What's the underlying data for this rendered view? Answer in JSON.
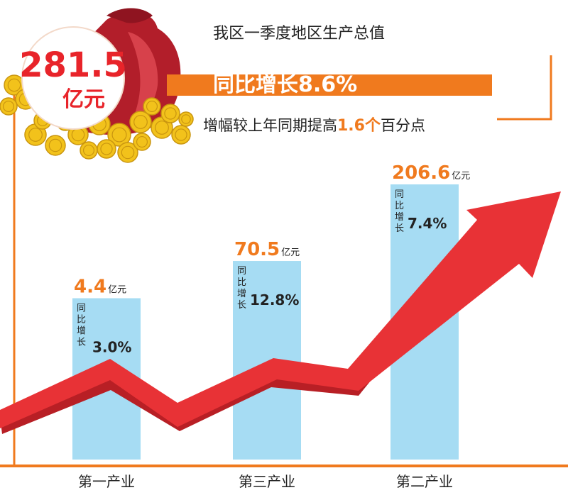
{
  "header": {
    "total_value": "281.5",
    "total_unit": "亿元",
    "title": "我区一季度地区生产总值",
    "growth_banner": "同比增长8.6%",
    "increase_prefix": "增幅较上年同期提高",
    "increase_value": "1.6个",
    "increase_suffix": "百分点"
  },
  "colors": {
    "accent": "#f07a1e",
    "bar": "#a6dcf3",
    "arrow": "#e83236",
    "arrow_dark": "#b81f25",
    "bag": "#b21e2a",
    "coin": "#f2c21b"
  },
  "chart_data": {
    "type": "bar",
    "categories": [
      "第一产业",
      "第三产业",
      "第二产业"
    ],
    "values": [
      4.4,
      70.5,
      206.6
    ],
    "value_labels": [
      "4.4",
      "70.5",
      "206.6"
    ],
    "unit": "亿元",
    "growth_label": "同比增长",
    "growth_rates": [
      "3.0%",
      "12.8%",
      "7.4%"
    ],
    "trend_arrow": "up"
  }
}
